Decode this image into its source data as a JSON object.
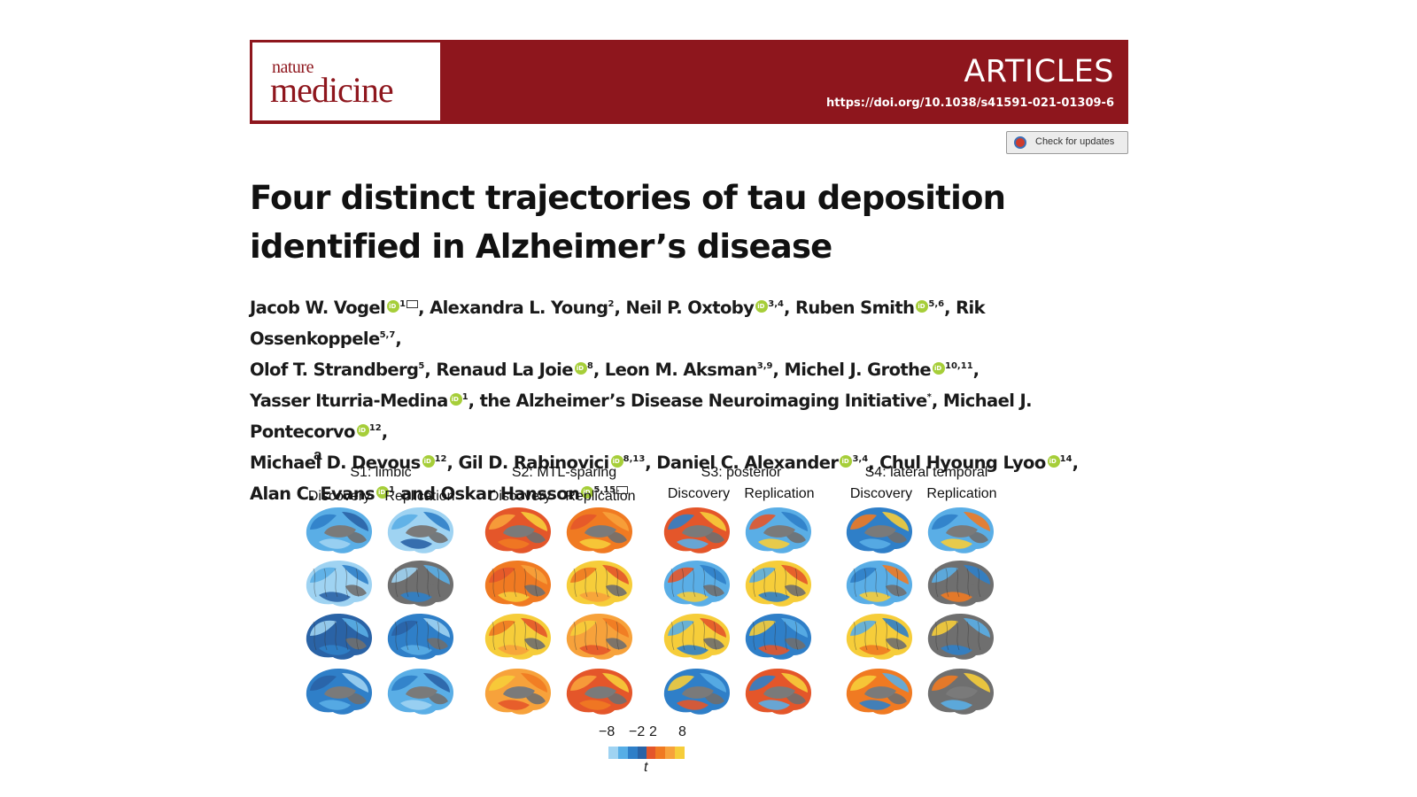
{
  "journal": {
    "logo_top": "nature",
    "logo_bottom": "medicine",
    "section": "ARTICLES",
    "doi": "https://doi.org/10.1038/s41591-021-01309-6",
    "updates_label": "Check for updates"
  },
  "title": {
    "line1": "Four distinct trajectories of tau deposition",
    "line2": "identified in Alzheimer’s disease"
  },
  "authors": {
    "a1": "Jacob W. Vogel",
    "a1s": "1",
    "a2": "Alexandra L. Young",
    "a2s": "2",
    "a3": "Neil P. Oxtoby",
    "a3s": "3,4",
    "a4": "Ruben Smith",
    "a4s": "5,6",
    "a5": "Rik Ossenkoppele",
    "a5s": "5,7",
    "a6": "Olof T. Strandberg",
    "a6s": "5",
    "a7": "Renaud La Joie",
    "a7s": "8",
    "a8": "Leon M. Aksman",
    "a8s": "3,9",
    "a9": "Michel J. Grothe",
    "a9s": "10,11",
    "a10": "Yasser Iturria-Medina",
    "a10s": "1",
    "a11": "the Alzheimer’s Disease Neuroimaging Initiative",
    "a11s": "*",
    "a12": "Michael J. Pontecorvo",
    "a12s": "12",
    "a13": "Michael D. Devous",
    "a13s": "12",
    "a14": "Gil D. Rabinovici",
    "a14s": "8,13",
    "a15": "Daniel C. Alexander",
    "a15s": "3,4",
    "a16": "Chul Hyoung Lyoo",
    "a16s": "14",
    "a17": "Alan C. Evans",
    "a17s": "1",
    "conj": "and",
    "a18": "Oskar Hansson",
    "a18s": "5,15"
  },
  "figure": {
    "panel": "a",
    "subtypes": [
      "S1: limbic",
      "S2: MTL-sparing",
      "S3: posterior",
      "S4: lateral temporal"
    ],
    "cohorts": [
      "Discovery",
      "Replication"
    ],
    "colorbar": {
      "labels": [
        "−8",
        "−2",
        "2",
        "8"
      ],
      "var": "t",
      "colors": [
        "#9fd3f2",
        "#57aee6",
        "#2f7fc8",
        "#2a63a6",
        "#e4562a",
        "#f07a22",
        "#f7a23b",
        "#f6cd3a"
      ]
    }
  }
}
